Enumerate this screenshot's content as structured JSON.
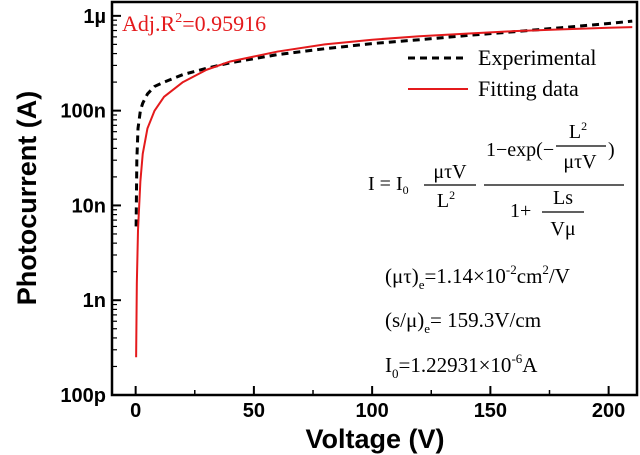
{
  "chart_data": {
    "type": "line",
    "xlabel": "Voltage (V)",
    "ylabel": "Photocurrent (A)",
    "xlim": [
      -10,
      212
    ],
    "ylim": [
      1e-10,
      1.4e-06
    ],
    "yscale": "log",
    "x_ticks": [
      "0",
      "50",
      "100",
      "150",
      "200"
    ],
    "y_ticks": [
      "100p",
      "1n",
      "10n",
      "100n",
      "1µ"
    ],
    "legend_placement": "top-right",
    "colors": {
      "experimental": "#000000",
      "fitting": "#e41a1c"
    },
    "series": [
      {
        "name": "Experimental",
        "style": "dashed",
        "x": [
          0.2,
          0.5,
          1,
          2,
          3,
          5,
          8,
          12,
          20,
          30,
          40,
          60,
          80,
          100,
          120,
          140,
          160,
          180,
          200,
          210
        ],
        "y": [
          6e-09,
          3e-08,
          6.5e-08,
          1e-07,
          1.2e-07,
          1.5e-07,
          1.8e-07,
          2e-07,
          2.4e-07,
          2.8e-07,
          3.2e-07,
          3.9e-07,
          4.5e-07,
          5.1e-07,
          5.6e-07,
          6.2e-07,
          6.8e-07,
          7.5e-07,
          8.3e-07,
          8.8e-07
        ]
      },
      {
        "name": "Fitting data",
        "style": "solid",
        "x": [
          0.2,
          0.5,
          1,
          2,
          3,
          5,
          8,
          12,
          20,
          30,
          40,
          60,
          80,
          100,
          120,
          140,
          160,
          180,
          200,
          210
        ],
        "y": [
          2.5e-10,
          1.5e-09,
          5.5e-09,
          1.8e-08,
          3.5e-08,
          6.5e-08,
          1e-07,
          1.4e-07,
          2e-07,
          2.7e-07,
          3.3e-07,
          4.2e-07,
          5e-07,
          5.6e-07,
          6.1e-07,
          6.5e-07,
          6.9e-07,
          7.2e-07,
          7.5e-07,
          7.6e-07
        ]
      }
    ],
    "annotations": {
      "adj_r2_prefix": "Adj.R",
      "adj_r2_exp": "2",
      "adj_r2_value": "=0.95916",
      "formula": {
        "lhs": "I = I",
        "lhs_sub": "0",
        "coef_num": "μτV",
        "coef_den": "L",
        "coef_den_exp": "2",
        "num_main": "1−exp(−",
        "num_inner_num": "L",
        "num_inner_num_exp": "2",
        "num_inner_den": "μτV",
        "num_close": ")",
        "den_main": "1+",
        "den_inner_num": "Ls",
        "den_inner_den": "Vμ"
      },
      "param1": {
        "pre": "(μτ)",
        "sub": "e",
        "mid": "=1.14×10",
        "sup": "-2",
        "mid2": "cm",
        "sup2": "2",
        "post": "/V"
      },
      "param2": {
        "pre": "(s/μ)",
        "sub": "e",
        "post": "= 159.3V/cm"
      },
      "param3": {
        "pre": "I",
        "sub": "0",
        "mid": "=1.22931×10",
        "sup": "-6",
        "post": "A"
      }
    }
  }
}
